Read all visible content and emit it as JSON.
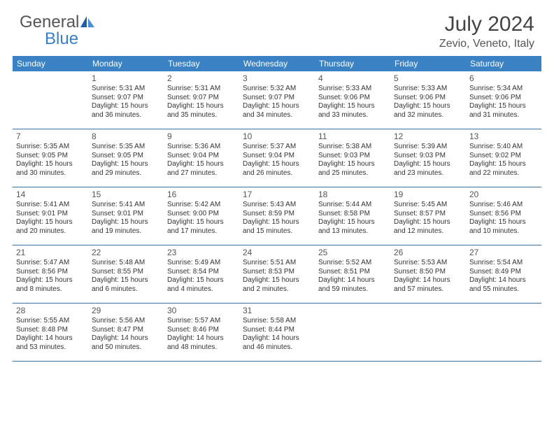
{
  "brand": {
    "part1": "General",
    "part2": "Blue",
    "sail_color_dark": "#1f5fa8",
    "sail_color_light": "#4a90d9"
  },
  "header": {
    "title": "July 2024",
    "location": "Zevio, Veneto, Italy"
  },
  "style": {
    "header_bg": "#3b82c4",
    "header_text": "#ffffff",
    "row_border": "#3b6fa0",
    "day_num_color": "#555555",
    "body_text_color": "#333333",
    "title_color": "#444444"
  },
  "daysOfWeek": [
    "Sunday",
    "Monday",
    "Tuesday",
    "Wednesday",
    "Thursday",
    "Friday",
    "Saturday"
  ],
  "weeks": [
    [
      null,
      {
        "n": "1",
        "sr": "5:31 AM",
        "ss": "9:07 PM",
        "dl": "15 hours and 36 minutes."
      },
      {
        "n": "2",
        "sr": "5:31 AM",
        "ss": "9:07 PM",
        "dl": "15 hours and 35 minutes."
      },
      {
        "n": "3",
        "sr": "5:32 AM",
        "ss": "9:07 PM",
        "dl": "15 hours and 34 minutes."
      },
      {
        "n": "4",
        "sr": "5:33 AM",
        "ss": "9:06 PM",
        "dl": "15 hours and 33 minutes."
      },
      {
        "n": "5",
        "sr": "5:33 AM",
        "ss": "9:06 PM",
        "dl": "15 hours and 32 minutes."
      },
      {
        "n": "6",
        "sr": "5:34 AM",
        "ss": "9:06 PM",
        "dl": "15 hours and 31 minutes."
      }
    ],
    [
      {
        "n": "7",
        "sr": "5:35 AM",
        "ss": "9:05 PM",
        "dl": "15 hours and 30 minutes."
      },
      {
        "n": "8",
        "sr": "5:35 AM",
        "ss": "9:05 PM",
        "dl": "15 hours and 29 minutes."
      },
      {
        "n": "9",
        "sr": "5:36 AM",
        "ss": "9:04 PM",
        "dl": "15 hours and 27 minutes."
      },
      {
        "n": "10",
        "sr": "5:37 AM",
        "ss": "9:04 PM",
        "dl": "15 hours and 26 minutes."
      },
      {
        "n": "11",
        "sr": "5:38 AM",
        "ss": "9:03 PM",
        "dl": "15 hours and 25 minutes."
      },
      {
        "n": "12",
        "sr": "5:39 AM",
        "ss": "9:03 PM",
        "dl": "15 hours and 23 minutes."
      },
      {
        "n": "13",
        "sr": "5:40 AM",
        "ss": "9:02 PM",
        "dl": "15 hours and 22 minutes."
      }
    ],
    [
      {
        "n": "14",
        "sr": "5:41 AM",
        "ss": "9:01 PM",
        "dl": "15 hours and 20 minutes."
      },
      {
        "n": "15",
        "sr": "5:41 AM",
        "ss": "9:01 PM",
        "dl": "15 hours and 19 minutes."
      },
      {
        "n": "16",
        "sr": "5:42 AM",
        "ss": "9:00 PM",
        "dl": "15 hours and 17 minutes."
      },
      {
        "n": "17",
        "sr": "5:43 AM",
        "ss": "8:59 PM",
        "dl": "15 hours and 15 minutes."
      },
      {
        "n": "18",
        "sr": "5:44 AM",
        "ss": "8:58 PM",
        "dl": "15 hours and 13 minutes."
      },
      {
        "n": "19",
        "sr": "5:45 AM",
        "ss": "8:57 PM",
        "dl": "15 hours and 12 minutes."
      },
      {
        "n": "20",
        "sr": "5:46 AM",
        "ss": "8:56 PM",
        "dl": "15 hours and 10 minutes."
      }
    ],
    [
      {
        "n": "21",
        "sr": "5:47 AM",
        "ss": "8:56 PM",
        "dl": "15 hours and 8 minutes."
      },
      {
        "n": "22",
        "sr": "5:48 AM",
        "ss": "8:55 PM",
        "dl": "15 hours and 6 minutes."
      },
      {
        "n": "23",
        "sr": "5:49 AM",
        "ss": "8:54 PM",
        "dl": "15 hours and 4 minutes."
      },
      {
        "n": "24",
        "sr": "5:51 AM",
        "ss": "8:53 PM",
        "dl": "15 hours and 2 minutes."
      },
      {
        "n": "25",
        "sr": "5:52 AM",
        "ss": "8:51 PM",
        "dl": "14 hours and 59 minutes."
      },
      {
        "n": "26",
        "sr": "5:53 AM",
        "ss": "8:50 PM",
        "dl": "14 hours and 57 minutes."
      },
      {
        "n": "27",
        "sr": "5:54 AM",
        "ss": "8:49 PM",
        "dl": "14 hours and 55 minutes."
      }
    ],
    [
      {
        "n": "28",
        "sr": "5:55 AM",
        "ss": "8:48 PM",
        "dl": "14 hours and 53 minutes."
      },
      {
        "n": "29",
        "sr": "5:56 AM",
        "ss": "8:47 PM",
        "dl": "14 hours and 50 minutes."
      },
      {
        "n": "30",
        "sr": "5:57 AM",
        "ss": "8:46 PM",
        "dl": "14 hours and 48 minutes."
      },
      {
        "n": "31",
        "sr": "5:58 AM",
        "ss": "8:44 PM",
        "dl": "14 hours and 46 minutes."
      },
      null,
      null,
      null
    ]
  ],
  "labels": {
    "sunrise": "Sunrise:",
    "sunset": "Sunset:",
    "daylight": "Daylight:"
  }
}
